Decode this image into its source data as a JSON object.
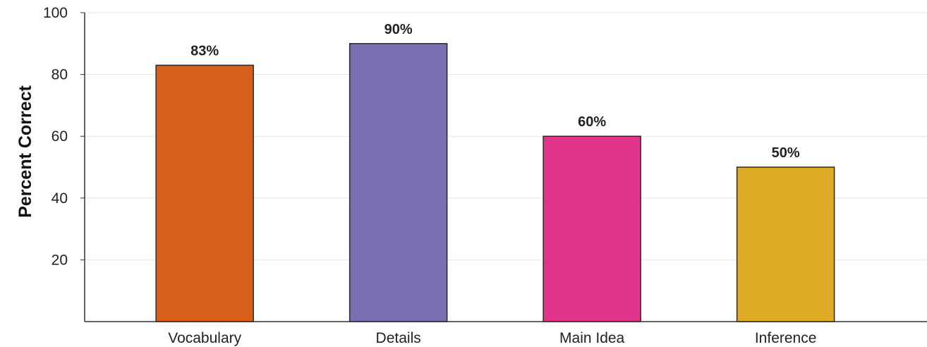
{
  "chart_data": {
    "type": "bar",
    "title": "",
    "xlabel": "",
    "ylabel": "Percent Correct",
    "categories": [
      "Vocabulary",
      "Details",
      "Main Idea",
      "Inference"
    ],
    "values": [
      83,
      90,
      60,
      50
    ],
    "data_labels": [
      "83%",
      "90%",
      "60%",
      "50%"
    ],
    "colors": [
      "#d4601a",
      "#7a6fb2",
      "#e0358a",
      "#dfab25"
    ],
    "y_ticks": [
      20,
      40,
      60,
      80,
      100
    ],
    "ylim": [
      0,
      100
    ],
    "grid": true
  }
}
